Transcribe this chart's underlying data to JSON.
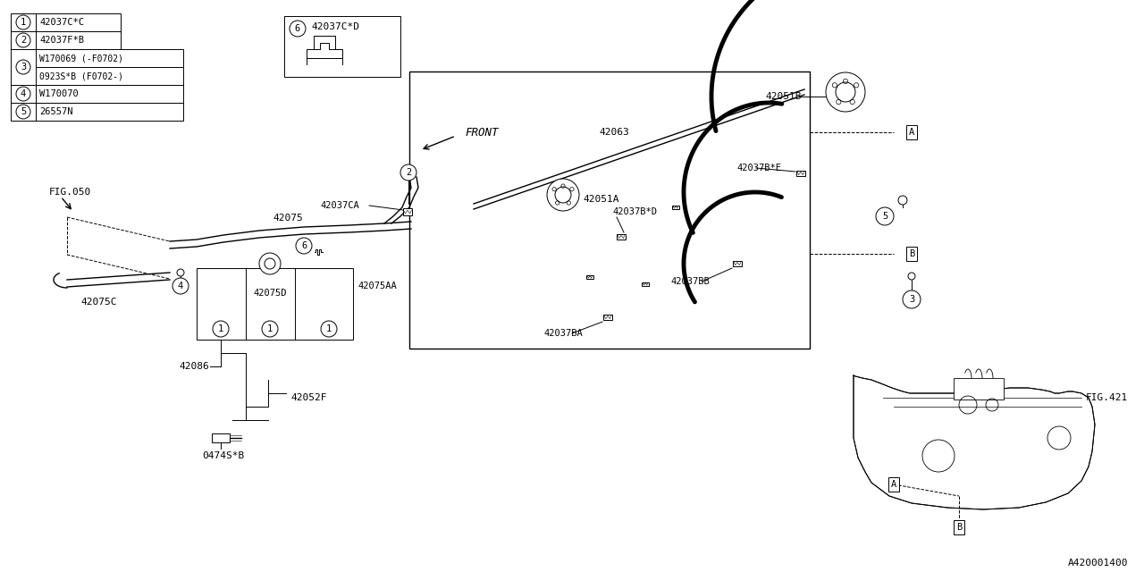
{
  "bg_color": "#ffffff",
  "line_color": "#000000",
  "diagram_id": "A420001400",
  "legend": [
    {
      "num": "1",
      "code": "42037C*C",
      "wide": false
    },
    {
      "num": "2",
      "code": "42037F*B",
      "wide": false
    },
    {
      "num": "3",
      "code1": "W170069 (-F0702)",
      "code2": "0923S*B (F0702-)",
      "wide": true
    },
    {
      "num": "4",
      "code": "W170070",
      "wide": false
    },
    {
      "num": "5",
      "code": "26557N",
      "wide": false
    }
  ],
  "callout6_text": "42037C*D",
  "front_label": "FRONT"
}
